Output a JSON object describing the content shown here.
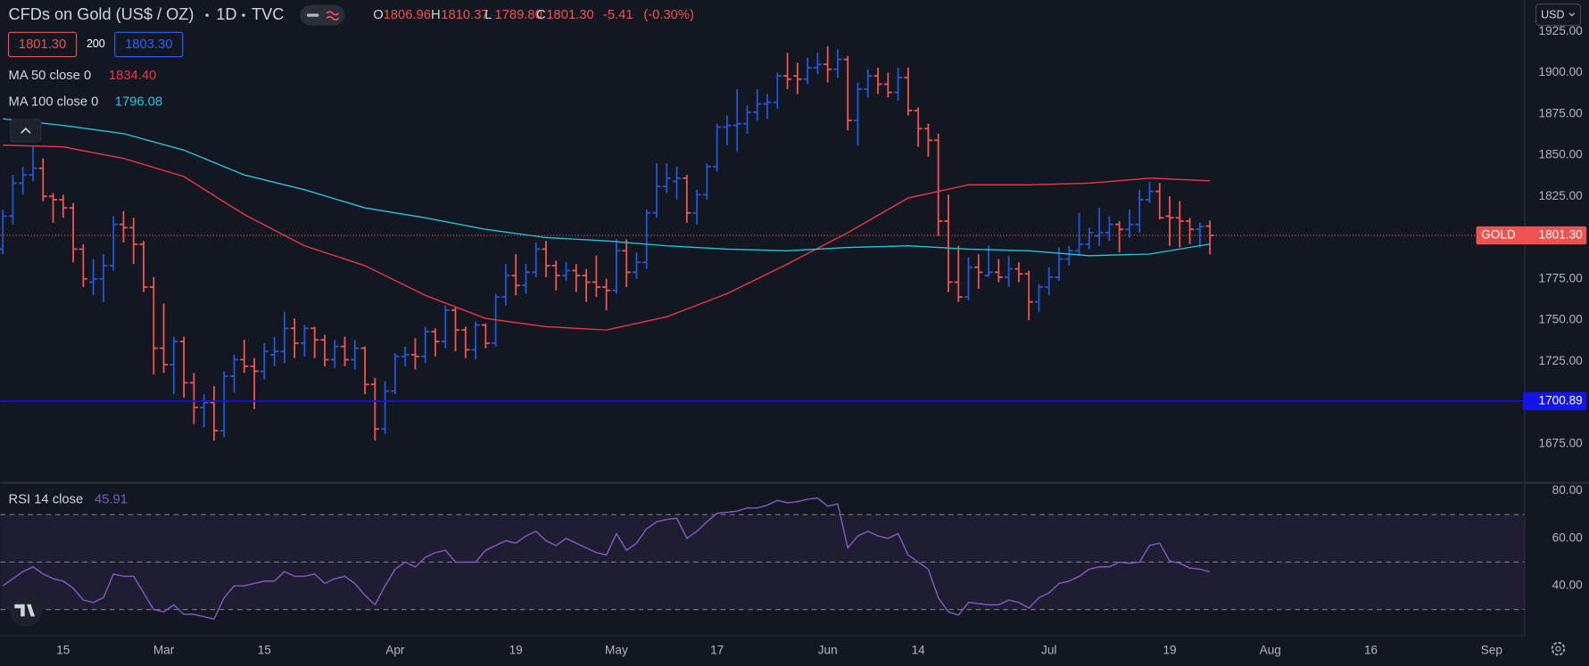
{
  "chart_data": [
    {
      "type": "ohlc",
      "title": "CFDs on Gold (US$ / OZ)",
      "interval": "1D",
      "source": "TVC",
      "symbol": "GOLD",
      "currency": "USD",
      "ohlc_legend": [
        {
          "key": "O",
          "label": "1806.96"
        },
        {
          "key": "H",
          "label": "1810.37"
        },
        {
          "key": "L",
          "label": "1789.80"
        },
        {
          "key": "C",
          "label": "1801.30"
        }
      ],
      "change": -5.41,
      "change_pct": {
        "value": -0.3,
        "label": "(-0.30%)"
      },
      "bid": {
        "value": 1801.3,
        "label": "1801.30"
      },
      "spread": 200,
      "ask": {
        "value": 1803.3,
        "label": "1803.30"
      },
      "up_color": "#2157d4",
      "down_color": "#ef5350",
      "grid": true,
      "xlim": [
        -0.24,
        151.3
      ],
      "ylim": [
        1652,
        1944
      ],
      "yticks": [
        {
          "value": 1675,
          "label": "1675.00"
        },
        {
          "value": 1700,
          "label": "1700.00"
        },
        {
          "value": 1725,
          "label": "1725.00"
        },
        {
          "value": 1750,
          "label": "1750.00"
        },
        {
          "value": 1775,
          "label": "1775.00"
        },
        {
          "value": 1800,
          "label": "1800.00"
        },
        {
          "value": 1825,
          "label": "1825.00"
        },
        {
          "value": 1850,
          "label": "1850.00"
        },
        {
          "value": 1875,
          "label": "1875.00"
        },
        {
          "value": 1900,
          "label": "1900.00"
        },
        {
          "value": 1925,
          "label": "1925.00"
        }
      ],
      "hline": {
        "value": 1700.89,
        "color": "#1414e6"
      },
      "bars": [
        [
          1793,
          1817,
          1790,
          1813
        ],
        [
          1813,
          1838,
          1808,
          1833
        ],
        [
          1833,
          1843,
          1826,
          1838
        ],
        [
          1838,
          1855,
          1834,
          1842
        ],
        [
          1842,
          1848,
          1822,
          1825
        ],
        [
          1825,
          1827,
          1809,
          1823
        ],
        [
          1823,
          1826,
          1812,
          1818
        ],
        [
          1818,
          1821,
          1785,
          1793
        ],
        [
          1793,
          1796,
          1770,
          1775
        ],
        [
          1773,
          1787,
          1765,
          1775
        ],
        [
          1775,
          1790,
          1761,
          1783
        ],
        [
          1783,
          1813,
          1780,
          1808
        ],
        [
          1808,
          1816,
          1797,
          1806
        ],
        [
          1806,
          1812,
          1784,
          1796
        ],
        [
          1796,
          1798,
          1767,
          1770
        ],
        [
          1770,
          1776,
          1717,
          1733
        ],
        [
          1733,
          1760,
          1718,
          1723
        ],
        [
          1723,
          1740,
          1705,
          1737
        ],
        [
          1737,
          1740,
          1703,
          1712
        ],
        [
          1712,
          1718,
          1687,
          1697
        ],
        [
          1697,
          1705,
          1685,
          1700
        ],
        [
          1700,
          1710,
          1677,
          1683
        ],
        [
          1683,
          1719,
          1679,
          1716
        ],
        [
          1716,
          1729,
          1706,
          1726
        ],
        [
          1726,
          1738,
          1718,
          1722
        ],
        [
          1722,
          1727,
          1696,
          1719
        ],
        [
          1719,
          1736,
          1714,
          1731
        ],
        [
          1729,
          1740,
          1722,
          1731
        ],
        [
          1731,
          1755,
          1724,
          1745
        ],
        [
          1745,
          1751,
          1727,
          1736
        ],
        [
          1736,
          1747,
          1728,
          1745
        ],
        [
          1745,
          1746,
          1727,
          1738
        ],
        [
          1738,
          1741,
          1722,
          1726
        ],
        [
          1726,
          1738,
          1721,
          1734
        ],
        [
          1734,
          1740,
          1722,
          1726
        ],
        [
          1726,
          1738,
          1720,
          1733
        ],
        [
          1733,
          1734,
          1705,
          1711
        ],
        [
          1711,
          1715,
          1677,
          1684
        ],
        [
          1684,
          1713,
          1681,
          1707
        ],
        [
          1707,
          1730,
          1705,
          1728
        ],
        [
          1728,
          1734,
          1722,
          1729
        ],
        [
          1729,
          1739,
          1720,
          1728
        ],
        [
          1728,
          1746,
          1724,
          1743
        ],
        [
          1743,
          1745,
          1728,
          1737
        ],
        [
          1737,
          1759,
          1733,
          1756
        ],
        [
          1756,
          1758,
          1731,
          1744
        ],
        [
          1744,
          1746,
          1727,
          1732
        ],
        [
          1732,
          1749,
          1726,
          1747
        ],
        [
          1747,
          1748,
          1733,
          1736
        ],
        [
          1736,
          1766,
          1734,
          1764
        ],
        [
          1764,
          1784,
          1759,
          1777
        ],
        [
          1777,
          1790,
          1765,
          1771
        ],
        [
          1771,
          1784,
          1766,
          1779
        ],
        [
          1779,
          1797,
          1776,
          1793
        ],
        [
          1793,
          1798,
          1776,
          1783
        ],
        [
          1783,
          1786,
          1768,
          1777
        ],
        [
          1777,
          1785,
          1774,
          1780
        ],
        [
          1780,
          1784,
          1767,
          1777
        ],
        [
          1777,
          1781,
          1761,
          1773
        ],
        [
          1773,
          1789,
          1764,
          1770
        ],
        [
          1770,
          1775,
          1756,
          1768
        ],
        [
          1768,
          1799,
          1766,
          1792
        ],
        [
          1792,
          1799,
          1770,
          1779
        ],
        [
          1779,
          1791,
          1775,
          1785
        ],
        [
          1785,
          1817,
          1781,
          1815
        ],
        [
          1815,
          1845,
          1812,
          1831
        ],
        [
          1831,
          1845,
          1827,
          1836
        ],
        [
          1834,
          1843,
          1823,
          1836
        ],
        [
          1836,
          1838,
          1809,
          1815
        ],
        [
          1815,
          1829,
          1808,
          1826
        ],
        [
          1826,
          1845,
          1823,
          1843
        ],
        [
          1843,
          1869,
          1840,
          1867
        ],
        [
          1867,
          1874,
          1856,
          1868
        ],
        [
          1868,
          1890,
          1852,
          1869
        ],
        [
          1869,
          1880,
          1863,
          1876
        ],
        [
          1876,
          1890,
          1871,
          1881
        ],
        [
          1881,
          1887,
          1872,
          1882
        ],
        [
          1882,
          1900,
          1878,
          1898
        ],
        [
          1898,
          1912,
          1890,
          1896
        ],
        [
          1898,
          1906,
          1887,
          1896
        ],
        [
          1896,
          1909,
          1893,
          1903
        ],
        [
          1903,
          1912,
          1899,
          1905
        ],
        [
          1905,
          1916,
          1894,
          1902
        ],
        [
          1902,
          1914,
          1897,
          1908
        ],
        [
          1908,
          1910,
          1865,
          1871
        ],
        [
          1871,
          1894,
          1856,
          1890
        ],
        [
          1890,
          1902,
          1885,
          1898
        ],
        [
          1898,
          1903,
          1887,
          1893
        ],
        [
          1893,
          1900,
          1885,
          1888
        ],
        [
          1888,
          1903,
          1883,
          1897
        ],
        [
          1897,
          1903,
          1874,
          1877
        ],
        [
          1877,
          1879,
          1855,
          1866
        ],
        [
          1866,
          1869,
          1849,
          1859
        ],
        [
          1859,
          1863,
          1801,
          1810
        ],
        [
          1810,
          1826,
          1767,
          1773
        ],
        [
          1773,
          1795,
          1761,
          1764
        ],
        [
          1764,
          1788,
          1762,
          1782
        ],
        [
          1782,
          1790,
          1769,
          1779
        ],
        [
          1777,
          1795,
          1776,
          1779
        ],
        [
          1779,
          1787,
          1773,
          1776
        ],
        [
          1776,
          1789,
          1770,
          1781
        ],
        [
          1781,
          1785,
          1773,
          1778
        ],
        [
          1778,
          1780,
          1750,
          1761
        ],
        [
          1761,
          1772,
          1755,
          1770
        ],
        [
          1770,
          1782,
          1765,
          1776
        ],
        [
          1776,
          1794,
          1774,
          1787
        ],
        [
          1787,
          1795,
          1783,
          1792
        ],
        [
          1792,
          1815,
          1789,
          1796
        ],
        [
          1796,
          1806,
          1793,
          1803
        ],
        [
          1801,
          1818,
          1795,
          1803
        ],
        [
          1803,
          1813,
          1798,
          1808
        ],
        [
          1808,
          1810,
          1791,
          1805
        ],
        [
          1805,
          1817,
          1800,
          1808
        ],
        [
          1808,
          1829,
          1803,
          1823
        ],
        [
          1823,
          1834,
          1821,
          1828
        ],
        [
          1828,
          1833,
          1811,
          1812
        ],
        [
          1813,
          1825,
          1795,
          1812
        ],
        [
          1812,
          1822,
          1794,
          1810
        ],
        [
          1810,
          1812,
          1796,
          1805
        ],
        [
          1805,
          1809,
          1794,
          1806.71
        ],
        [
          1806.96,
          1810.37,
          1789.8,
          1801.3
        ]
      ],
      "series": [
        {
          "name": "MA 50 close 0",
          "color": "#f23645",
          "last_label": "1834.40",
          "x": [
            0,
            6,
            12,
            18,
            24,
            30,
            36,
            42,
            48,
            54,
            60,
            66,
            72,
            78,
            84,
            90,
            96,
            102,
            108,
            114,
            120
          ],
          "values": [
            1856,
            1855,
            1848,
            1837,
            1814,
            1795,
            1783,
            1765,
            1751,
            1746,
            1744,
            1752,
            1766,
            1784,
            1803,
            1824,
            1832,
            1832,
            1833,
            1836,
            1834.4
          ]
        },
        {
          "name": "MA 100 close 0",
          "color": "#26c6da",
          "last_label": "1796.08",
          "x": [
            0,
            6,
            12,
            18,
            24,
            30,
            36,
            42,
            48,
            54,
            60,
            66,
            72,
            78,
            84,
            90,
            96,
            102,
            108,
            114,
            120
          ],
          "values": [
            1872,
            1868,
            1863,
            1853,
            1838,
            1829,
            1818,
            1812,
            1805,
            1800,
            1798,
            1795,
            1793,
            1792,
            1794,
            1795,
            1793,
            1792,
            1789,
            1790,
            1796.08
          ]
        }
      ]
    },
    {
      "type": "line",
      "grid": true,
      "xlim": [
        -0.24,
        151.3
      ],
      "ylim": [
        19,
        83
      ],
      "yticks": [
        {
          "value": 40,
          "label": "40.00"
        },
        {
          "value": 60,
          "label": "60.00"
        },
        {
          "value": 80,
          "label": "80.00"
        }
      ],
      "levels": [
        30,
        50,
        70
      ],
      "xticks": [
        {
          "value": 6,
          "label": "15"
        },
        {
          "value": 16,
          "label": "Mar"
        },
        {
          "value": 26,
          "label": "15"
        },
        {
          "value": 39,
          "label": "Apr"
        },
        {
          "value": 51,
          "label": "19"
        },
        {
          "value": 61,
          "label": "May"
        },
        {
          "value": 71,
          "label": "17"
        },
        {
          "value": 82,
          "label": "Jun"
        },
        {
          "value": 91,
          "label": "14"
        },
        {
          "value": 104,
          "label": "Jul"
        },
        {
          "value": 116,
          "label": "19"
        },
        {
          "value": 126,
          "label": "Aug"
        },
        {
          "value": 136,
          "label": "16"
        },
        {
          "value": 148,
          "label": "Sep"
        }
      ],
      "series": [
        {
          "name": "RSI 14 close",
          "color": "#7e57c2",
          "last_label": "45.91",
          "values": [
            40,
            43,
            46,
            48,
            45,
            43,
            42,
            39,
            34,
            33,
            35,
            45,
            44,
            44,
            37,
            30,
            29,
            32,
            28,
            28,
            27,
            26,
            35,
            40,
            40,
            41,
            42,
            42,
            46,
            44,
            44,
            45,
            41,
            43,
            44,
            41,
            36,
            32,
            40,
            47,
            50,
            48,
            52,
            54,
            55,
            50,
            50,
            50,
            55,
            57,
            59,
            58,
            61,
            63,
            59,
            57,
            60,
            58,
            56,
            54,
            53,
            62,
            55,
            58,
            64,
            67,
            68,
            68.5,
            60,
            63,
            67,
            70.6,
            71,
            71.5,
            72.8,
            72.8,
            74,
            76,
            75,
            75.5,
            76.5,
            77,
            73.6,
            74.5,
            56,
            61,
            63,
            61,
            60,
            62,
            53,
            50,
            47,
            35,
            29,
            27.7,
            33,
            32.5,
            32,
            32,
            34,
            33,
            30.6,
            35,
            37,
            41,
            42,
            44,
            47,
            48,
            48,
            50,
            49.5,
            50,
            57,
            58,
            50.5,
            49.5,
            47.5,
            47,
            45.91
          ]
        }
      ]
    }
  ]
}
